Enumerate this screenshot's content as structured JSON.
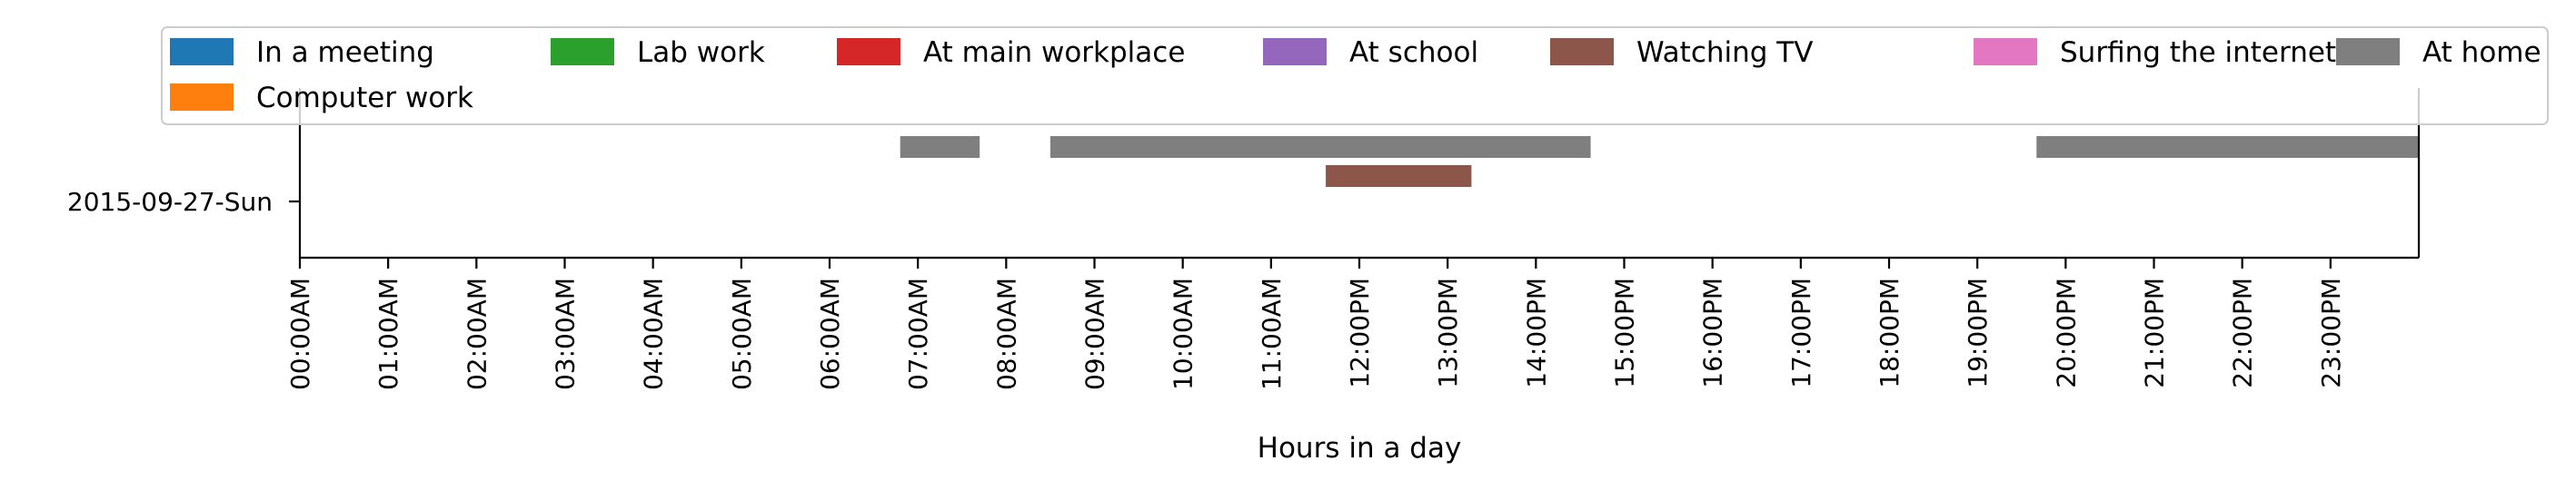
{
  "chart_data": {
    "type": "bar",
    "orientation": "horizontal-timeline",
    "title": "",
    "xlabel": "Hours in a day",
    "ylabel": "",
    "xlim": [
      0,
      24
    ],
    "x_tick_labels": [
      "00:00AM",
      "01:00AM",
      "02:00AM",
      "03:00AM",
      "04:00AM",
      "05:00AM",
      "06:00AM",
      "07:00AM",
      "08:00AM",
      "09:00AM",
      "10:00AM",
      "11:00AM",
      "12:00PM",
      "13:00PM",
      "14:00PM",
      "15:00PM",
      "16:00PM",
      "17:00PM",
      "18:00PM",
      "19:00PM",
      "20:00PM",
      "21:00PM",
      "22:00PM",
      "23:00PM"
    ],
    "categories": [
      "2015-09-27-Sun"
    ],
    "grid": false,
    "legend_placement": "top",
    "legend": [
      {
        "name": "In a meeting",
        "color": "#1f77b4"
      },
      {
        "name": "Lab work",
        "color": "#2ca02c"
      },
      {
        "name": "At main workplace",
        "color": "#d62728"
      },
      {
        "name": "At school",
        "color": "#9467bd"
      },
      {
        "name": "Watching TV",
        "color": "#8c564b"
      },
      {
        "name": "Surfing the internet",
        "color": "#e377c2"
      },
      {
        "name": "At home",
        "color": "#7f7f7f"
      },
      {
        "name": "Computer work",
        "color": "#ff7f0e"
      }
    ],
    "series": [
      {
        "name": "At home",
        "color": "#7f7f7f",
        "lane": 0,
        "segments": [
          [
            6.8,
            7.7
          ],
          [
            8.5,
            14.62
          ],
          [
            19.67,
            24.0
          ]
        ]
      },
      {
        "name": "Watching TV",
        "color": "#8c564b",
        "lane": 1,
        "segments": [
          [
            11.62,
            13.27
          ]
        ]
      }
    ]
  }
}
